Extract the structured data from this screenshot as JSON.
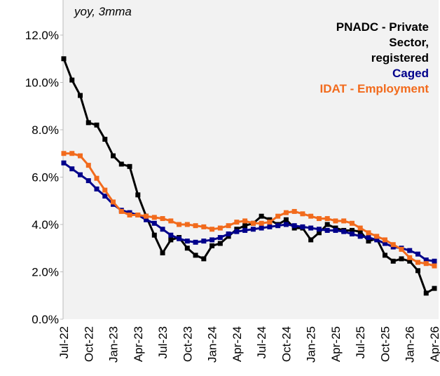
{
  "chart_data": {
    "type": "line",
    "annotation": "yoy, 3mma",
    "categories": [
      "Jul-22",
      null,
      null,
      "Oct-22",
      null,
      null,
      "Jan-23",
      null,
      null,
      "Apr-23",
      null,
      null,
      "Jul-23",
      null,
      null,
      "Oct-23",
      null,
      null,
      "Jan-24",
      null,
      null,
      "Apr-24",
      null,
      null,
      "Jul-24",
      null,
      null,
      "Oct-24",
      null,
      null,
      "Jan-25",
      null,
      null,
      "Apr-25",
      null,
      null,
      "Jul-25",
      null,
      null,
      "Oct-25",
      null,
      null,
      "Jan-26",
      null,
      null,
      "Apr-26"
    ],
    "series": [
      {
        "name": "PNADC - Private Sector, registered",
        "color": "#000000",
        "values": [
          11.0,
          10.1,
          9.45,
          8.3,
          8.2,
          7.6,
          6.9,
          6.55,
          6.45,
          5.25,
          4.35,
          3.55,
          2.8,
          3.35,
          3.45,
          3.0,
          2.7,
          2.55,
          3.1,
          3.2,
          3.5,
          3.8,
          3.95,
          4.05,
          4.35,
          4.2,
          4.0,
          4.2,
          3.85,
          3.85,
          3.35,
          3.65,
          4.0,
          3.85,
          3.75,
          3.75,
          3.7,
          3.3,
          3.4,
          2.7,
          2.45,
          2.55,
          2.45,
          2.05,
          1.1,
          1.3
        ]
      },
      {
        "name": "Caged",
        "color": "#00008b",
        "values": [
          6.6,
          6.35,
          6.1,
          5.85,
          5.5,
          5.2,
          4.85,
          4.6,
          4.5,
          4.4,
          4.2,
          4.05,
          3.8,
          3.55,
          3.4,
          3.3,
          3.25,
          3.3,
          3.35,
          3.45,
          3.6,
          3.7,
          3.75,
          3.8,
          3.85,
          3.9,
          3.95,
          4.0,
          3.95,
          3.9,
          3.85,
          3.8,
          3.75,
          3.75,
          3.7,
          3.6,
          3.5,
          3.45,
          3.35,
          3.2,
          3.05,
          3.0,
          2.9,
          2.75,
          2.5,
          2.45
        ]
      },
      {
        "name": "IDAT - Employment",
        "color": "#f26b1d",
        "values": [
          7.0,
          7.0,
          6.9,
          6.5,
          5.95,
          5.45,
          4.95,
          4.55,
          4.4,
          4.4,
          4.35,
          4.3,
          4.25,
          4.15,
          4.0,
          4.0,
          3.95,
          3.9,
          3.8,
          3.85,
          3.95,
          4.1,
          4.15,
          4.05,
          4.05,
          4.1,
          4.35,
          4.5,
          4.55,
          4.45,
          4.35,
          4.25,
          4.25,
          4.15,
          4.15,
          4.05,
          3.85,
          3.65,
          3.5,
          3.35,
          3.15,
          2.95,
          2.6,
          2.4,
          2.35,
          2.25
        ]
      }
    ],
    "ylim": [
      0,
      12
    ],
    "yticks": [
      {
        "value": 0,
        "label": "0.0%"
      },
      {
        "value": 2,
        "label": "2.0%"
      },
      {
        "value": 4,
        "label": "4.0%"
      },
      {
        "value": 6,
        "label": "6.0%"
      },
      {
        "value": 8,
        "label": "8.0%"
      },
      {
        "value": 10,
        "label": "10.0%"
      },
      {
        "value": 12,
        "label": "12.0%"
      }
    ],
    "legend": "top-right",
    "background": "#f2f2f2"
  }
}
